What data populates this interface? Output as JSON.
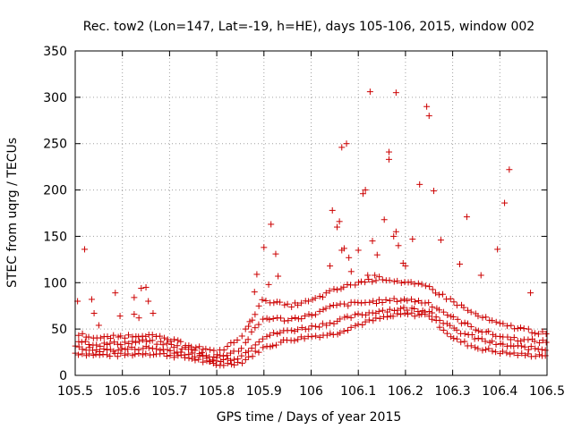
{
  "chart_data": {
    "type": "scatter",
    "title": "Rec. tow2 (Lon=147, Lat=-19, h=HE), days 105-106, 2015, window 002",
    "xlabel": "GPS time / Days of year 2015",
    "ylabel": "STEC from uqrg / TECUs",
    "xlim": [
      105.5,
      106.5
    ],
    "ylim": [
      0,
      350
    ],
    "xticks": [
      105.5,
      105.6,
      105.7,
      105.8,
      105.9,
      106,
      106.1,
      106.2,
      106.3,
      106.4,
      106.5
    ],
    "xtick_labels": [
      "105.5",
      "105.6",
      "105.7",
      "105.8",
      "105.9",
      "106",
      "106.1",
      "106.2",
      "106.3",
      "106.4",
      "106.5"
    ],
    "yticks": [
      0,
      50,
      100,
      150,
      200,
      250,
      300,
      350
    ],
    "ytick_labels": [
      "0",
      "50",
      "100",
      "150",
      "200",
      "250",
      "300",
      "350"
    ],
    "grid": true,
    "marker": "+",
    "color": "#cc0000",
    "series": [
      {
        "name": "STEC",
        "points": [
          [
            105.505,
            80
          ],
          [
            105.52,
            136
          ],
          [
            105.535,
            82
          ],
          [
            105.54,
            67
          ],
          [
            105.55,
            54
          ],
          [
            105.585,
            89
          ],
          [
            105.595,
            64
          ],
          [
            105.625,
            66
          ],
          [
            105.625,
            84
          ],
          [
            105.635,
            62
          ],
          [
            105.64,
            94
          ],
          [
            105.65,
            95
          ],
          [
            105.655,
            80
          ],
          [
            105.665,
            67
          ],
          [
            105.87,
            58
          ],
          [
            105.88,
            90
          ],
          [
            105.885,
            109
          ],
          [
            105.9,
            138
          ],
          [
            105.91,
            98
          ],
          [
            105.915,
            163
          ],
          [
            105.925,
            131
          ],
          [
            105.93,
            107
          ],
          [
            106.04,
            118
          ],
          [
            106.045,
            178
          ],
          [
            106.055,
            160
          ],
          [
            106.06,
            166
          ],
          [
            106.065,
            135
          ],
          [
            106.065,
            246
          ],
          [
            106.07,
            137
          ],
          [
            106.075,
            250
          ],
          [
            106.08,
            127
          ],
          [
            106.085,
            112
          ],
          [
            106.1,
            135
          ],
          [
            106.11,
            196
          ],
          [
            106.115,
            200
          ],
          [
            106.12,
            108
          ],
          [
            106.125,
            306
          ],
          [
            106.13,
            145
          ],
          [
            106.135,
            108
          ],
          [
            106.14,
            130
          ],
          [
            106.155,
            168
          ],
          [
            106.165,
            241
          ],
          [
            106.165,
            233
          ],
          [
            106.175,
            150
          ],
          [
            106.18,
            305
          ],
          [
            106.18,
            155
          ],
          [
            106.185,
            140
          ],
          [
            106.195,
            121
          ],
          [
            106.2,
            118
          ],
          [
            106.215,
            147
          ],
          [
            106.23,
            206
          ],
          [
            106.245,
            290
          ],
          [
            106.25,
            280
          ],
          [
            106.26,
            199
          ],
          [
            106.275,
            146
          ],
          [
            106.315,
            120
          ],
          [
            106.33,
            171
          ],
          [
            106.36,
            108
          ],
          [
            106.395,
            136
          ],
          [
            106.41,
            186
          ],
          [
            106.42,
            222
          ],
          [
            106.465,
            89
          ]
        ],
        "bands": [
          {
            "x": [
              105.5,
              105.55,
              105.6,
              105.65,
              105.7,
              105.75,
              105.8,
              105.85,
              105.9,
              105.95,
              106.0,
              106.05,
              106.1,
              106.15,
              106.2,
              106.25,
              106.3,
              106.35,
              106.4,
              106.45,
              106.5
            ],
            "y": [
              24,
              22,
              22,
              24,
              22,
              18,
              11,
              14,
              30,
              38,
              42,
              45,
              55,
              62,
              66,
              65,
              40,
              30,
              25,
              22,
              22
            ]
          },
          {
            "x": [
              105.5,
              105.55,
              105.6,
              105.65,
              105.7,
              105.75,
              105.8,
              105.85,
              105.9,
              105.95,
              106.0,
              106.05,
              106.1,
              106.15,
              106.2,
              106.25,
              106.3,
              106.35,
              106.4,
              106.45,
              106.5
            ],
            "y": [
              30,
              27,
              28,
              30,
              27,
              22,
              15,
              20,
              42,
              48,
              52,
              58,
              65,
              70,
              72,
              70,
              50,
              40,
              33,
              30,
              28
            ]
          },
          {
            "x": [
              105.5,
              105.55,
              105.6,
              105.65,
              105.7,
              105.75,
              105.8,
              105.85,
              105.9,
              105.95,
              106.0,
              106.05,
              106.1,
              106.15,
              106.2,
              106.25,
              106.3,
              106.35,
              106.4,
              106.45,
              106.5
            ],
            "y": [
              38,
              33,
              35,
              37,
              33,
              27,
              19,
              28,
              62,
              60,
              65,
              75,
              78,
              80,
              82,
              78,
              62,
              50,
              42,
              38,
              36
            ]
          },
          {
            "x": [
              105.5,
              105.55,
              105.6,
              105.65,
              105.7,
              105.75,
              105.8,
              105.85,
              105.9,
              105.95,
              106.0,
              106.05,
              106.1,
              106.15,
              106.2,
              106.25,
              106.3,
              106.35,
              106.4,
              106.45,
              106.5
            ],
            "y": [
              45,
              40,
              42,
              44,
              38,
              32,
              24,
              40,
              82,
              75,
              80,
              92,
              100,
              105,
              100,
              95,
              80,
              65,
              55,
              50,
              44
            ]
          }
        ]
      }
    ]
  }
}
